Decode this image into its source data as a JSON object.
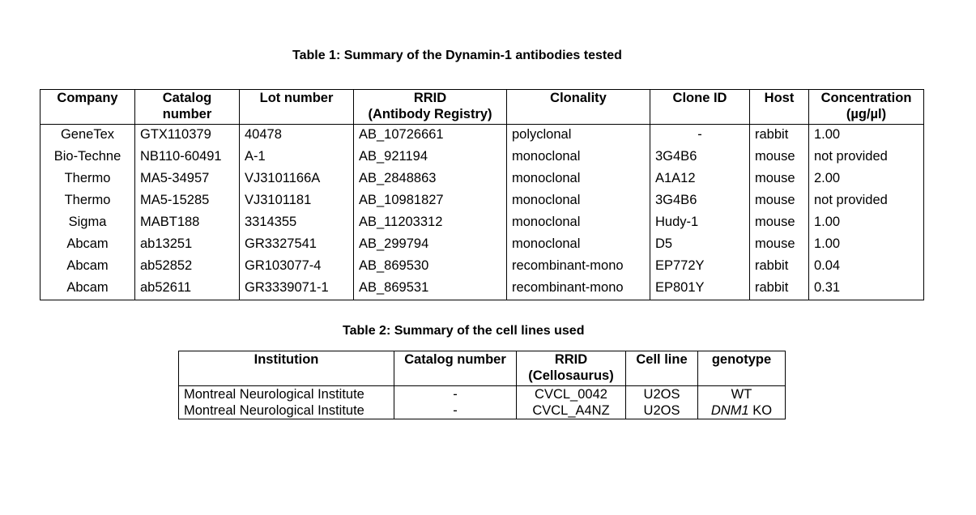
{
  "table1": {
    "caption": "Table 1: Summary of the Dynamin-1 antibodies tested",
    "headers": [
      [
        "Company",
        ""
      ],
      [
        "Catalog",
        "number"
      ],
      [
        "Lot number",
        ""
      ],
      [
        "RRID",
        "(Antibody Registry)"
      ],
      [
        "Clonality",
        ""
      ],
      [
        "Clone ID",
        ""
      ],
      [
        "Host",
        ""
      ],
      [
        "Concentration",
        "(µg/µl)"
      ]
    ],
    "rows": [
      [
        "GeneTex",
        "GTX110379",
        "40478",
        "AB_10726661",
        "polyclonal",
        "-",
        "rabbit",
        "1.00"
      ],
      [
        "Bio-Techne",
        "NB110-60491",
        "A-1",
        "AB_921194",
        "monoclonal",
        "3G4B6",
        "mouse",
        "not provided"
      ],
      [
        "Thermo",
        "MA5-34957",
        "VJ3101166A",
        "AB_2848863",
        "monoclonal",
        "A1A12",
        "mouse",
        "2.00"
      ],
      [
        "Thermo",
        "MA5-15285",
        "VJ3101181",
        "AB_10981827",
        "monoclonal",
        "3G4B6",
        "mouse",
        "not provided"
      ],
      [
        "Sigma",
        "MABT188",
        "3314355",
        "AB_11203312",
        "monoclonal",
        "Hudy-1",
        "mouse",
        "1.00"
      ],
      [
        "Abcam",
        "ab13251",
        "GR3327541",
        "AB_299794",
        "monoclonal",
        "D5",
        "mouse",
        "1.00"
      ],
      [
        "Abcam",
        "ab52852",
        "GR103077-4",
        "AB_869530",
        "recombinant-mono",
        "EP772Y",
        "rabbit",
        "0.04"
      ],
      [
        "Abcam",
        "ab52611",
        "GR3339071-1",
        "AB_869531",
        "recombinant-mono",
        "EP801Y",
        "rabbit",
        "0.31"
      ]
    ]
  },
  "table2": {
    "caption": "Table 2: Summary of the cell lines used",
    "headers": [
      [
        "Institution",
        ""
      ],
      [
        "Catalog number",
        ""
      ],
      [
        "RRID",
        "(Cellosaurus)"
      ],
      [
        "Cell line",
        ""
      ],
      [
        "genotype",
        ""
      ]
    ],
    "rows": [
      {
        "institution": "Montreal Neurological Institute",
        "catalog": "-",
        "rrid": "CVCL_0042",
        "cell_line": "U2OS",
        "genotype_gene": "",
        "genotype_rest": "WT"
      },
      {
        "institution": "Montreal Neurological Institute",
        "catalog": "-",
        "rrid": "CVCL_A4NZ",
        "cell_line": "U2OS",
        "genotype_gene": "DNM1",
        "genotype_rest": " KO"
      }
    ]
  }
}
